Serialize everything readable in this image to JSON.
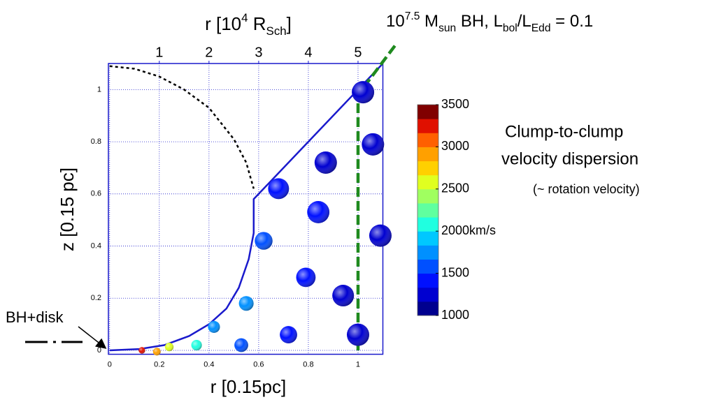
{
  "chart_data": {
    "type": "scatter",
    "title": [
      {
        "text": "10",
        "pos": "base"
      },
      {
        "text": "7.5",
        "pos": "sup"
      },
      {
        "text": " M",
        "pos": "base"
      },
      {
        "text": "sun",
        "pos": "sub"
      },
      {
        "text": " BH, L",
        "pos": "base"
      },
      {
        "text": "bol",
        "pos": "sub"
      },
      {
        "text": "/L",
        "pos": "base"
      },
      {
        "text": "Edd",
        "pos": "sub"
      },
      {
        "text": " = 0.1",
        "pos": "base"
      }
    ],
    "x_label": "r [0.15pc]",
    "y_label": "z [0.15 pc]",
    "x2_label": [
      {
        "text": "r [10",
        "pos": "base"
      },
      {
        "text": "4",
        "pos": "sup"
      },
      {
        "text": " R",
        "pos": "base"
      },
      {
        "text": "Sch",
        "pos": "sub"
      },
      {
        "text": "]",
        "pos": "base"
      }
    ],
    "xlim": [
      -0.005,
      1.1
    ],
    "ylim": [
      -0.015,
      1.1
    ],
    "xticks": [
      0,
      0.2,
      0.4,
      0.6,
      0.8,
      1
    ],
    "yticks": [
      0,
      0.2,
      0.4,
      0.6,
      0.8,
      1
    ],
    "x2ticks": [
      {
        "value": 0.2,
        "label": "1"
      },
      {
        "value": 0.4,
        "label": "2"
      },
      {
        "value": 0.6,
        "label": "3"
      },
      {
        "value": 0.8,
        "label": "4"
      },
      {
        "value": 1.0,
        "label": "5"
      }
    ],
    "grid": true,
    "axis_color": "#1a1acc",
    "label_color": "#cc7a29",
    "x": [
      0.13,
      0.19,
      0.24,
      0.35,
      0.42,
      0.53,
      0.55,
      0.62,
      0.68,
      0.72,
      0.79,
      0.84,
      0.87,
      0.94,
      1.0,
      1.06,
      1.09,
      1.02
    ],
    "y": [
      0.0,
      -0.005,
      0.013,
      0.02,
      0.09,
      0.02,
      0.18,
      0.42,
      0.62,
      0.06,
      0.28,
      0.53,
      0.72,
      0.21,
      0.06,
      0.79,
      0.44,
      0.99
    ],
    "velocity": [
      3300,
      2900,
      2500,
      2000,
      1800,
      1650,
      1700,
      1600,
      1450,
      1450,
      1400,
      1400,
      1300,
      1300,
      1250,
      1250,
      1200,
      1200
    ],
    "lines": [
      {
        "x": [
          0,
          0.1,
          0.2,
          0.3,
          0.4,
          0.5,
          0.55,
          0.58
        ],
        "y": [
          1.09,
          1.08,
          1.05,
          1.0,
          0.93,
          0.81,
          0.72,
          0.62
        ],
        "color": "#000000",
        "dash": "4 4",
        "width": 2.5
      },
      {
        "x": [
          0,
          0.12,
          0.22,
          0.32,
          0.4,
          0.47,
          0.52,
          0.56,
          0.58,
          0.58,
          0.58,
          1.1
        ],
        "y": [
          0,
          0.005,
          0.02,
          0.055,
          0.1,
          0.16,
          0.24,
          0.35,
          0.45,
          0.52,
          0.58,
          1.1
        ],
        "color": "#1a1acc",
        "dash": "none",
        "width": 2.5
      },
      {
        "x": [
          1.0,
          1.0,
          1.15
        ],
        "y": [
          0,
          0.98,
          1.17
        ],
        "color": "#1f8a1f",
        "dash": "14 6",
        "width": 4.5
      }
    ],
    "colorbar": {
      "clim": [
        1000,
        3500
      ],
      "ticks": [
        1000,
        1500,
        {
          "value": 2000,
          "label": "2000km/s"
        },
        2500,
        3000,
        3500
      ],
      "colormap": [
        "#00008f",
        "#0000d0",
        "#0010ff",
        "#0050ff",
        "#0090ff",
        "#00c8ff",
        "#20ffe0",
        "#60ff9f",
        "#a0ff60",
        "#e0ff20",
        "#ffd000",
        "#ffa000",
        "#ff6000",
        "#e01000",
        "#800000"
      ]
    },
    "annotations": [
      "Clump-to-clump",
      "velocity dispersion",
      "(~ rotation velocity)"
    ],
    "legend_label": "BH+disk"
  }
}
